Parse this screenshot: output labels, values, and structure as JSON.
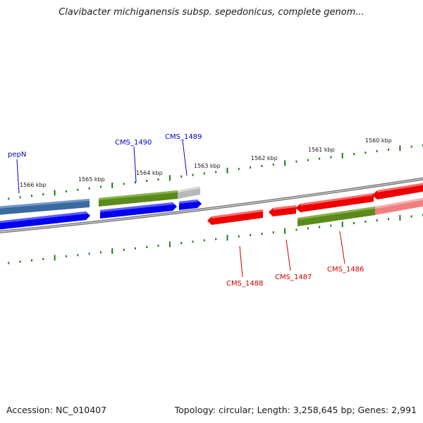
{
  "header": {
    "title": "Clavibacter michiganensis subsp. sepedonicus, complete genom..."
  },
  "footer": {
    "accession": "Accession: NC_010407",
    "summary": "Topology: circular; Length: 3,258,645 bp; Genes: 2,991"
  },
  "scale_labels": [
    "1566 kbp",
    "1565 kbp",
    "1564 kbp",
    "1563 kbp",
    "1562 kbp",
    "1561 kbp",
    "1560 kbp"
  ],
  "gene_labels": {
    "forward": [
      "pepN",
      "CMS_1490",
      "CMS_1489"
    ],
    "reverse": [
      "CMS_1488",
      "CMS_1487",
      "CMS_1486"
    ]
  },
  "colors": {
    "forward_label": "#0000cc",
    "reverse_label": "#cc0000",
    "backbone": "#808080",
    "tick": "#1a7a1a",
    "cds_forward": "#0000ee",
    "cds_reverse": "#ee0000",
    "gene_feature": "#5a8a1a",
    "gene_blue": "#3a6aa0",
    "gene_pink": "#f08080",
    "gene_grey": "#bbbbbb"
  }
}
